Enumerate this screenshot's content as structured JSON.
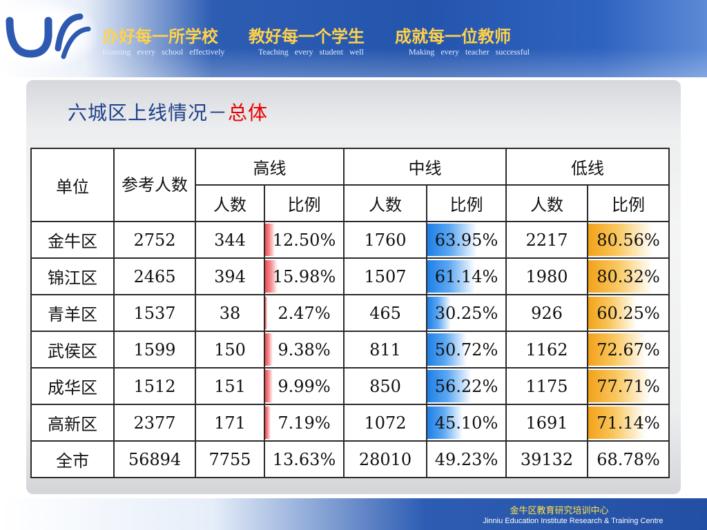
{
  "header": {
    "motto_cn": [
      "办好每一所学校",
      "教好每一个学生",
      "成就每一位教师"
    ],
    "motto_en": [
      "Running every school effectively",
      "Teaching every student well",
      "Making every teacher successful"
    ]
  },
  "title": {
    "main": "六城区上线情况－",
    "accent": "总体"
  },
  "table": {
    "headers": {
      "unit": "单位",
      "participants": "参考人数",
      "high": "高线",
      "mid": "中线",
      "low": "低线",
      "count": "人数",
      "ratio": "比例"
    },
    "rows": [
      {
        "unit": "金牛区",
        "participants": "2752",
        "high_count": "344",
        "high_ratio": "12.50%",
        "high_value": 12.5,
        "mid_count": "1760",
        "mid_ratio": "63.95%",
        "mid_value": 63.95,
        "low_count": "2217",
        "low_ratio": "80.56%",
        "low_value": 80.56
      },
      {
        "unit": "锦江区",
        "participants": "2465",
        "high_count": "394",
        "high_ratio": "15.98%",
        "high_value": 15.98,
        "mid_count": "1507",
        "mid_ratio": "61.14%",
        "mid_value": 61.14,
        "low_count": "1980",
        "low_ratio": "80.32%",
        "low_value": 80.32
      },
      {
        "unit": "青羊区",
        "participants": "1537",
        "high_count": "38",
        "high_ratio": "2.47%",
        "high_value": 2.47,
        "mid_count": "465",
        "mid_ratio": "30.25%",
        "mid_value": 30.25,
        "low_count": "926",
        "low_ratio": "60.25%",
        "low_value": 60.25
      },
      {
        "unit": "武侯区",
        "participants": "1599",
        "high_count": "150",
        "high_ratio": "9.38%",
        "high_value": 9.38,
        "mid_count": "811",
        "mid_ratio": "50.72%",
        "mid_value": 50.72,
        "low_count": "1162",
        "low_ratio": "72.67%",
        "low_value": 72.67
      },
      {
        "unit": "成华区",
        "participants": "1512",
        "high_count": "151",
        "high_ratio": "9.99%",
        "high_value": 9.99,
        "mid_count": "850",
        "mid_ratio": "56.22%",
        "mid_value": 56.22,
        "low_count": "1175",
        "low_ratio": "77.71%",
        "low_value": 77.71
      },
      {
        "unit": "高新区",
        "participants": "2377",
        "high_count": "171",
        "high_ratio": "7.19%",
        "high_value": 7.19,
        "mid_count": "1072",
        "mid_ratio": "45.10%",
        "mid_value": 45.1,
        "low_count": "1691",
        "low_ratio": "71.14%",
        "low_value": 71.14
      },
      {
        "unit": "全市",
        "participants": "56894",
        "high_count": "7755",
        "high_ratio": "13.63%",
        "high_value": null,
        "mid_count": "28010",
        "mid_ratio": "49.23%",
        "mid_value": null,
        "low_count": "39132",
        "low_ratio": "68.78%",
        "low_value": null
      }
    ]
  },
  "colors": {
    "high_bar": "#f14a50",
    "mid_bar": "#1f7fe6",
    "low_bar": "#f3a21a",
    "title": "#1f3f8a",
    "title_accent": "#e60000",
    "motto": "#ffd24a"
  },
  "footer": {
    "org_cn": "金牛区教育研究培训中心",
    "org_en": "Jinniu Education Institute Research & Training Centre"
  }
}
